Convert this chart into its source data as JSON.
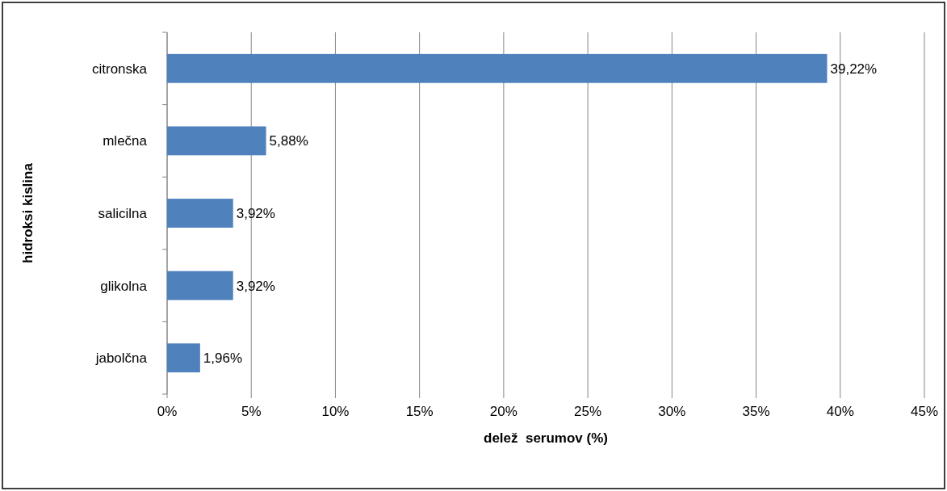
{
  "chart_data": {
    "type": "bar",
    "orientation": "horizontal",
    "categories": [
      "citronska",
      "mlečna",
      "salicilna",
      "glikolna",
      "jabolčna"
    ],
    "values": [
      39.22,
      5.88,
      3.92,
      3.92,
      1.96
    ],
    "value_labels": [
      "39,22%",
      "5,88%",
      "3,92%",
      "3,92%",
      "1,96%"
    ],
    "color": "#4f81bd",
    "xlabel": "delež  serumov (%)",
    "ylabel": "hidroksi kislina",
    "xlim": [
      0,
      45
    ],
    "xticks": [
      {
        "value": 0,
        "label": "0%"
      },
      {
        "value": 5,
        "label": "5%"
      },
      {
        "value": 10,
        "label": "10%"
      },
      {
        "value": 15,
        "label": "15%"
      },
      {
        "value": 20,
        "label": "20%"
      },
      {
        "value": 25,
        "label": "25%"
      },
      {
        "value": 30,
        "label": "30%"
      },
      {
        "value": 35,
        "label": "35%"
      },
      {
        "value": 40,
        "label": "40%"
      },
      {
        "value": 45,
        "label": "45%"
      }
    ],
    "grid": "x"
  }
}
